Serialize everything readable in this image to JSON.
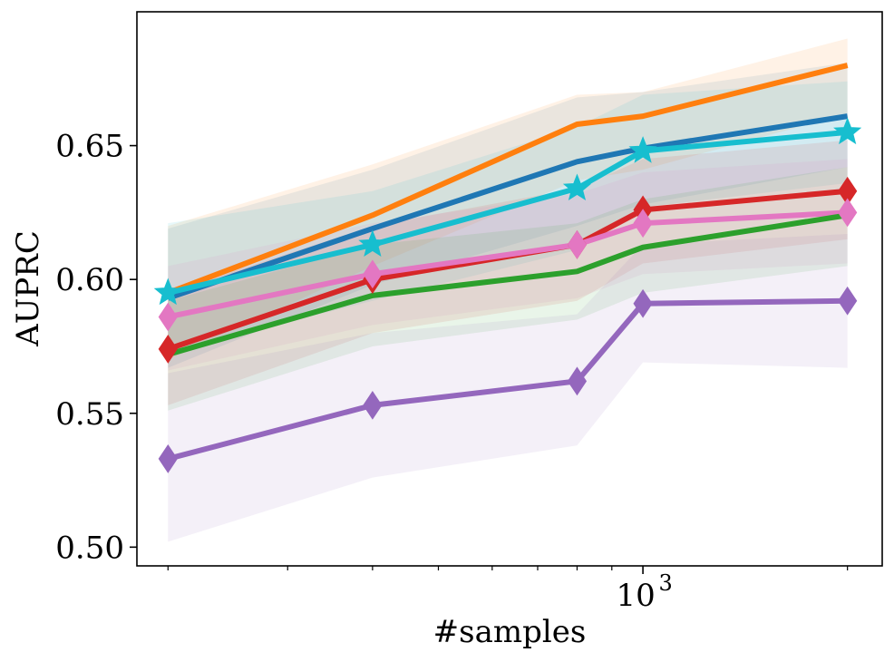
{
  "chart_data": {
    "type": "line",
    "xscale": "log",
    "xlabel": "#samples",
    "ylabel": "AUPRC",
    "x": [
      200,
      400,
      800,
      1000,
      2000
    ],
    "xlim": [
      180,
      2250
    ],
    "ylim": [
      0.493,
      0.7
    ],
    "yticks": [
      0.5,
      0.55,
      0.6,
      0.65
    ],
    "ytick_labels": [
      "0.50",
      "0.55",
      "0.60",
      "0.65"
    ],
    "xtick_major": [
      {
        "value": 1000,
        "base": "10",
        "exp": "3"
      }
    ],
    "xtick_minor": [
      200,
      300,
      400,
      500,
      600,
      700,
      800,
      900,
      2000
    ],
    "series": [
      {
        "name": "blue",
        "color": "#1f77b4",
        "marker": "none",
        "values": [
          0.593,
          0.619,
          0.644,
          0.649,
          0.661
        ],
        "lower": [
          0.567,
          0.598,
          0.62,
          0.628,
          0.642
        ],
        "upper": [
          0.619,
          0.641,
          0.668,
          0.67,
          0.681
        ]
      },
      {
        "name": "orange",
        "color": "#ff7f0e",
        "marker": "none",
        "values": [
          0.595,
          0.624,
          0.658,
          0.661,
          0.68
        ],
        "lower": [
          0.57,
          0.605,
          0.637,
          0.641,
          0.662
        ],
        "upper": [
          0.62,
          0.643,
          0.669,
          0.67,
          0.69
        ]
      },
      {
        "name": "cyan",
        "color": "#17becf",
        "marker": "star",
        "values": [
          0.595,
          0.613,
          0.634,
          0.648,
          0.655
        ],
        "lower": [
          0.573,
          0.592,
          0.611,
          0.627,
          0.636
        ],
        "upper": [
          0.621,
          0.633,
          0.657,
          0.669,
          0.674
        ]
      },
      {
        "name": "red",
        "color": "#d62728",
        "marker": "diamond",
        "values": [
          0.574,
          0.6,
          0.613,
          0.626,
          0.633
        ],
        "lower": [
          0.553,
          0.58,
          0.592,
          0.606,
          0.615
        ],
        "upper": [
          0.595,
          0.62,
          0.634,
          0.645,
          0.652
        ]
      },
      {
        "name": "pink",
        "color": "#e377c2",
        "marker": "diamond",
        "values": [
          0.586,
          0.602,
          0.613,
          0.621,
          0.625
        ],
        "lower": [
          0.566,
          0.583,
          0.593,
          0.602,
          0.606
        ],
        "upper": [
          0.605,
          0.621,
          0.632,
          0.64,
          0.645
        ]
      },
      {
        "name": "green",
        "color": "#2ca02c",
        "marker": "none",
        "values": [
          0.572,
          0.594,
          0.603,
          0.612,
          0.624
        ],
        "lower": [
          0.551,
          0.575,
          0.585,
          0.595,
          0.605
        ],
        "upper": [
          0.592,
          0.613,
          0.621,
          0.63,
          0.642
        ]
      },
      {
        "name": "purple",
        "color": "#9467bd",
        "marker": "diamond",
        "values": [
          0.533,
          0.553,
          0.562,
          0.591,
          0.592
        ],
        "lower": [
          0.502,
          0.526,
          0.538,
          0.569,
          0.567
        ],
        "upper": [
          0.565,
          0.58,
          0.587,
          0.613,
          0.617
        ]
      }
    ]
  }
}
